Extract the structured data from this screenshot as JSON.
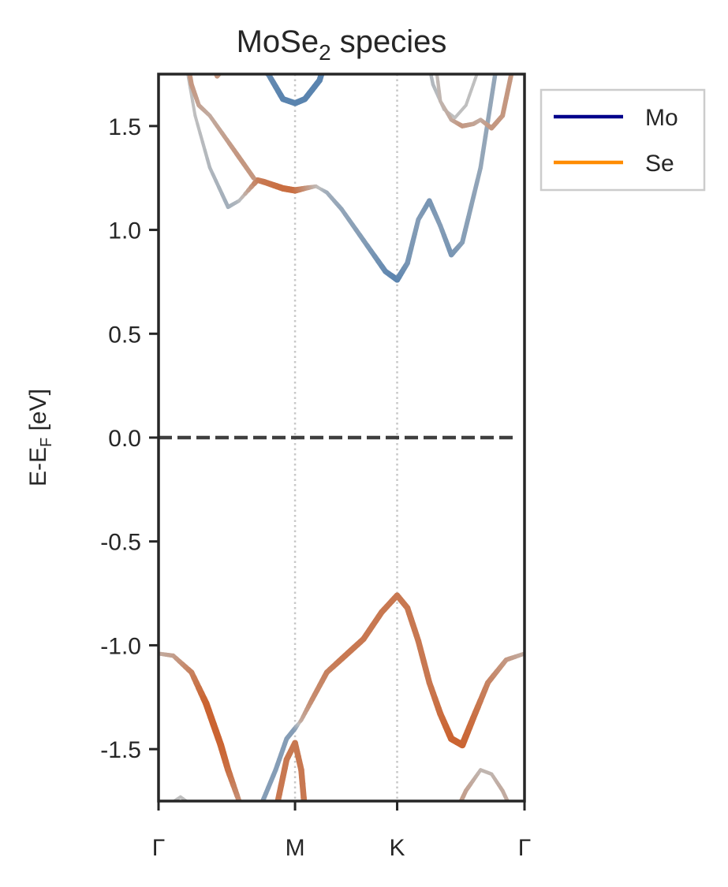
{
  "chart_data": {
    "type": "line",
    "title": {
      "main": "MoSe",
      "sub": "2",
      "rest": " species"
    },
    "ylabel": {
      "main": "E-E",
      "sub": "F",
      "rest": " [eV]"
    },
    "xlabel": "",
    "ylim": [
      -1.75,
      1.75
    ],
    "xlim": [
      0,
      1
    ],
    "yticks": [
      {
        "v": -1.5,
        "label": "-1.5"
      },
      {
        "v": -1.0,
        "label": "-1.0"
      },
      {
        "v": -0.5,
        "label": "-0.5"
      },
      {
        "v": 0.0,
        "label": "0.0"
      },
      {
        "v": 0.5,
        "label": "0.5"
      },
      {
        "v": 1.0,
        "label": "1.0"
      },
      {
        "v": 1.5,
        "label": "1.5"
      }
    ],
    "kpoints": [
      {
        "label": "Γ",
        "x": 0.0
      },
      {
        "label": "M",
        "x": 0.373
      },
      {
        "label": "K",
        "x": 0.652
      },
      {
        "label": "Γ",
        "x": 1.0
      }
    ],
    "fermi_level": 0.0,
    "grid": false,
    "legend": {
      "placement": "outside-top-right",
      "entries": [
        {
          "name": "Mo",
          "color": "#00008b"
        },
        {
          "name": "Se",
          "color": "#ff8c00"
        }
      ]
    },
    "colors": {
      "Mo": "#2e6aa8",
      "Se": "#cc5a22",
      "mixed": "#bfbfbf"
    },
    "bands": [
      {
        "id": "conduction-band-1",
        "points": [
          [
            0.0,
            2.3,
            0.5
          ],
          [
            0.06,
            1.95,
            0.5
          ],
          [
            0.1,
            1.55,
            0.5
          ],
          [
            0.14,
            1.3,
            0.55
          ],
          [
            0.19,
            1.11,
            0.6
          ],
          [
            0.22,
            1.14,
            0.55
          ],
          [
            0.27,
            1.24,
            0.2
          ],
          [
            0.29,
            1.23,
            0.15
          ],
          [
            0.34,
            1.2,
            0.1
          ],
          [
            0.373,
            1.19,
            0.1
          ],
          [
            0.4,
            1.2,
            0.25
          ],
          [
            0.43,
            1.21,
            0.45
          ],
          [
            0.46,
            1.18,
            0.6
          ],
          [
            0.5,
            1.1,
            0.65
          ],
          [
            0.56,
            0.95,
            0.7
          ],
          [
            0.62,
            0.8,
            0.8
          ],
          [
            0.652,
            0.76,
            0.85
          ],
          [
            0.68,
            0.84,
            0.75
          ],
          [
            0.71,
            1.05,
            0.7
          ],
          [
            0.74,
            1.14,
            0.75
          ],
          [
            0.77,
            1.02,
            0.7
          ],
          [
            0.8,
            0.88,
            0.75
          ],
          [
            0.83,
            0.94,
            0.7
          ],
          [
            0.88,
            1.3,
            0.65
          ],
          [
            0.92,
            1.75,
            0.65
          ],
          [
            0.95,
            2.1,
            0.65
          ]
        ]
      },
      {
        "id": "conduction-band-2",
        "points": [
          [
            0.07,
            1.9,
            0.3
          ],
          [
            0.09,
            1.7,
            0.3
          ],
          [
            0.11,
            1.6,
            0.35
          ],
          [
            0.14,
            1.55,
            0.4
          ],
          [
            0.18,
            1.45,
            0.35
          ],
          [
            0.22,
            1.35,
            0.3
          ],
          [
            0.26,
            1.25,
            0.3
          ]
        ]
      },
      {
        "id": "conduction-band-3",
        "points": [
          [
            0.2,
            1.8,
            0.7
          ],
          [
            0.26,
            1.8,
            0.75
          ],
          [
            0.3,
            1.75,
            0.8
          ],
          [
            0.34,
            1.63,
            0.85
          ],
          [
            0.373,
            1.61,
            0.85
          ],
          [
            0.4,
            1.63,
            0.85
          ],
          [
            0.44,
            1.72,
            0.85
          ],
          [
            0.48,
            1.95,
            0.85
          ]
        ]
      },
      {
        "id": "conduction-band-4",
        "points": [
          [
            0.15,
            1.78,
            0.3
          ],
          [
            0.16,
            1.74,
            0.3
          ],
          [
            0.17,
            1.76,
            0.3
          ]
        ]
      },
      {
        "id": "conduction-band-5",
        "points": [
          [
            0.72,
            1.95,
            0.55
          ],
          [
            0.75,
            1.7,
            0.55
          ],
          [
            0.78,
            1.58,
            0.5
          ],
          [
            0.81,
            1.54,
            0.5
          ],
          [
            0.84,
            1.6,
            0.5
          ],
          [
            0.87,
            1.75,
            0.5
          ]
        ]
      },
      {
        "id": "conduction-band-6",
        "points": [
          [
            0.75,
            1.9,
            0.5
          ],
          [
            0.77,
            1.62,
            0.45
          ],
          [
            0.8,
            1.53,
            0.4
          ],
          [
            0.83,
            1.5,
            0.3
          ],
          [
            0.86,
            1.51,
            0.35
          ],
          [
            0.88,
            1.53,
            0.4
          ],
          [
            0.91,
            1.49,
            0.3
          ],
          [
            0.94,
            1.55,
            0.3
          ],
          [
            0.97,
            1.8,
            0.3
          ]
        ]
      },
      {
        "id": "valence-band-1",
        "points": [
          [
            0.0,
            -1.04,
            0.4
          ],
          [
            0.04,
            -1.05,
            0.35
          ],
          [
            0.09,
            -1.13,
            0.2
          ],
          [
            0.13,
            -1.28,
            0.05
          ],
          [
            0.17,
            -1.48,
            0.05
          ],
          [
            0.19,
            -1.6,
            0.1
          ],
          [
            0.22,
            -1.75,
            0.25
          ],
          [
            0.25,
            -1.95,
            0.3
          ]
        ]
      },
      {
        "id": "valence-band-2",
        "points": [
          [
            0.24,
            -1.95,
            0.7
          ],
          [
            0.28,
            -1.77,
            0.7
          ],
          [
            0.32,
            -1.6,
            0.7
          ],
          [
            0.35,
            -1.45,
            0.7
          ],
          [
            0.373,
            -1.4,
            0.7
          ],
          [
            0.39,
            -1.36,
            0.4
          ],
          [
            0.42,
            -1.26,
            0.25
          ],
          [
            0.46,
            -1.13,
            0.2
          ],
          [
            0.51,
            -1.05,
            0.15
          ],
          [
            0.56,
            -0.97,
            0.15
          ],
          [
            0.61,
            -0.84,
            0.15
          ],
          [
            0.652,
            -0.76,
            0.15
          ],
          [
            0.68,
            -0.82,
            0.15
          ],
          [
            0.71,
            -0.98,
            0.15
          ],
          [
            0.74,
            -1.18,
            0.15
          ],
          [
            0.77,
            -1.33,
            0.1
          ],
          [
            0.8,
            -1.45,
            0.05
          ],
          [
            0.83,
            -1.48,
            0.05
          ],
          [
            0.86,
            -1.35,
            0.1
          ],
          [
            0.9,
            -1.18,
            0.2
          ],
          [
            0.95,
            -1.07,
            0.3
          ],
          [
            1.0,
            -1.04,
            0.4
          ]
        ]
      },
      {
        "id": "valence-band-3",
        "points": [
          [
            0.32,
            -1.8,
            0.15
          ],
          [
            0.35,
            -1.55,
            0.15
          ],
          [
            0.373,
            -1.47,
            0.15
          ],
          [
            0.39,
            -1.6,
            0.15
          ],
          [
            0.4,
            -1.8,
            0.15
          ],
          [
            0.41,
            -2.0,
            0.15
          ]
        ]
      },
      {
        "id": "valence-band-4",
        "points": [
          [
            0.0,
            -1.8,
            0.5
          ],
          [
            0.06,
            -1.73,
            0.5
          ],
          [
            0.1,
            -1.78,
            0.5
          ],
          [
            0.14,
            -1.95,
            0.5
          ]
        ]
      },
      {
        "id": "valence-band-5",
        "points": [
          [
            0.8,
            -1.85,
            0.3
          ],
          [
            0.84,
            -1.7,
            0.35
          ],
          [
            0.88,
            -1.6,
            0.45
          ],
          [
            0.91,
            -1.62,
            0.45
          ],
          [
            0.94,
            -1.7,
            0.4
          ],
          [
            0.98,
            -1.85,
            0.4
          ]
        ]
      }
    ]
  }
}
